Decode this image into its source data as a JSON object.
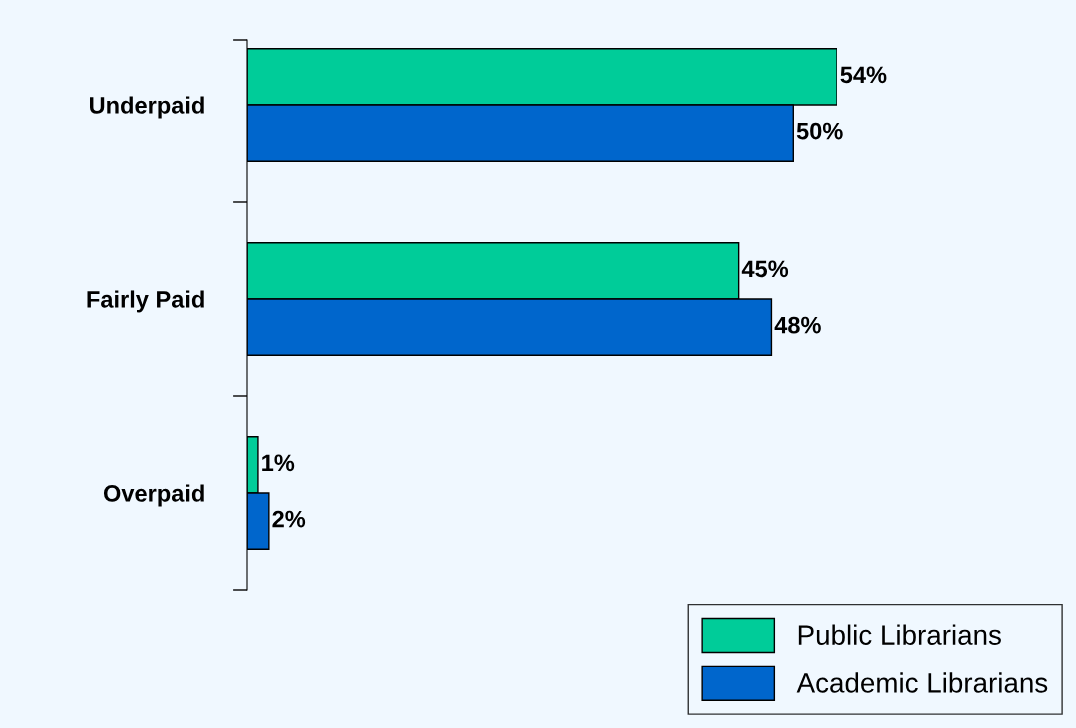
{
  "chart_data": {
    "type": "bar",
    "orientation": "horizontal",
    "categories": [
      "Underpaid",
      "Fairly Paid",
      "Overpaid"
    ],
    "series": [
      {
        "name": "Public Librarians",
        "color": "#00cc99",
        "values": [
          54,
          45,
          1
        ],
        "value_labels": [
          "54%",
          "45%",
          "1%"
        ]
      },
      {
        "name": "Academic Librarians",
        "color": "#0066cc",
        "values": [
          50,
          48,
          2
        ],
        "value_labels": [
          "50%",
          "48%",
          "2%"
        ]
      }
    ],
    "legend": "bottom right",
    "grid": false
  }
}
